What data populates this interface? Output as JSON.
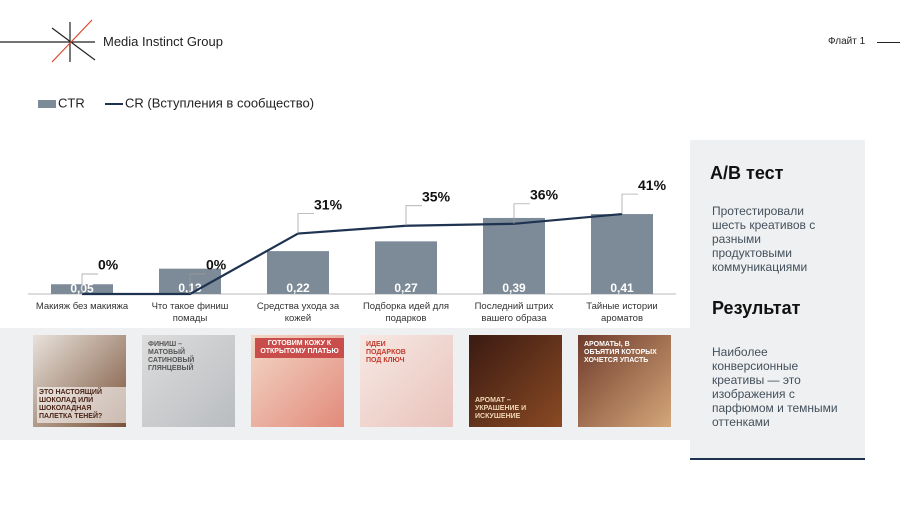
{
  "header": {
    "brand": "Media Instinct Group",
    "flight": "Флайт 1"
  },
  "chart_data": {
    "type": "combo",
    "categories": [
      "Макияж без макияжа",
      "Что такое финиш помады",
      "Средства ухода за кожей",
      "Подборка идей для подарков",
      "Последний штрих вашего образа",
      "Тайные истории ароматов"
    ],
    "series": [
      {
        "name": "CTR",
        "type": "bar",
        "color": "#7d8b98",
        "values": [
          0.05,
          0.13,
          0.22,
          0.27,
          0.39,
          0.41
        ],
        "value_labels": [
          "0,05",
          "0,13",
          "0,22",
          "0,27",
          "0,39",
          "0,41"
        ]
      },
      {
        "name": "CR (Вступления в сообщество)",
        "type": "line",
        "axis": "y2",
        "color": "#1e3350",
        "values": [
          0,
          0,
          31,
          35,
          36,
          41
        ],
        "value_labels": [
          "0%",
          "0%",
          "31%",
          "35%",
          "36%",
          "41%"
        ]
      }
    ],
    "ylim": [
      0,
      0.6
    ],
    "y2lim": [
      0,
      60
    ],
    "grid": false,
    "legend": "top-left"
  },
  "creatives": [
    "ЭТО НАСТОЯЩИЙ ШОКОЛАД ИЛИ ШОКОЛАДНАЯ ПАЛЕТКА ТЕНЕЙ?",
    "ФИНИШ – МАТОВЫЙ САТИНОВЫЙ ГЛЯНЦЕВЫЙ",
    "ГОТОВИМ КОЖУ К ОТКРЫТОМУ ПЛАТЬЮ",
    "ИДЕИ ПОДАРКОВ ПОД КЛЮЧ",
    "АРОМАТ – УКРАШЕНИЕ И ИСКУШЕНИЕ",
    "АРОМАТЫ, В ОБЪЯТИЯ КОТОРЫХ ХОЧЕТСЯ УПАСТЬ"
  ],
  "panel": {
    "test_title": "A/B тест",
    "test_text": "Протестировали шесть креативов с разными продуктовыми коммуникациями",
    "result_title": "Результат",
    "result_text": "Наиболее конверсионные креативы — это изображения с парфюмом и темными оттенками"
  }
}
